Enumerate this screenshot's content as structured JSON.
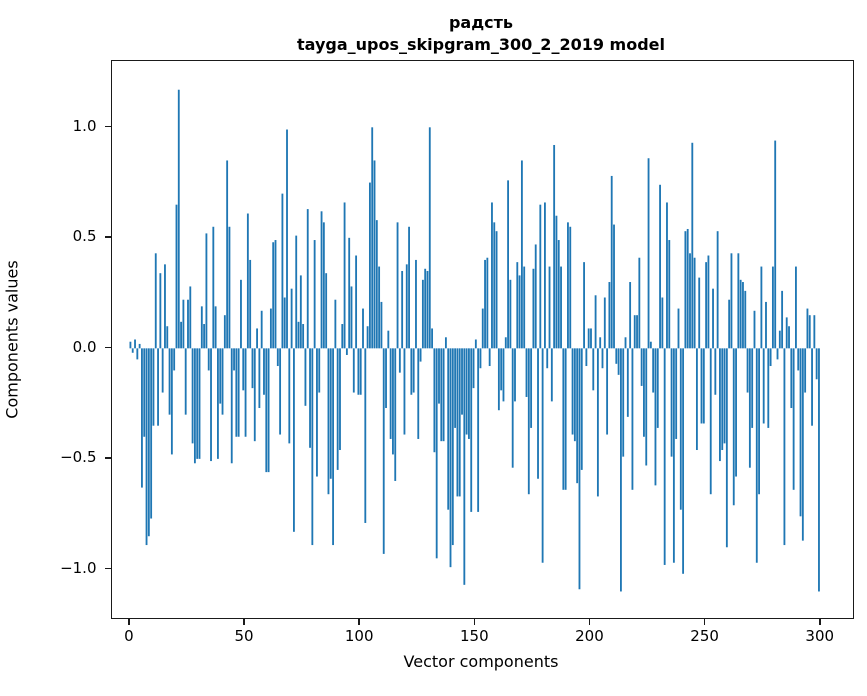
{
  "figure": {
    "background": "#ffffff",
    "title_line1": "радсть",
    "title_line2": "tayga_upos_skipgram_300_2_2019 model"
  },
  "chart_data": {
    "type": "bar",
    "title": "радсть",
    "subtitle": "tayga_upos_skipgram_300_2_2019 model",
    "xlabel": "Vector components",
    "ylabel": "Components values",
    "bar_color": "#1f77b4",
    "spine_color": "#1a1a1a",
    "grid": false,
    "legend": false,
    "xlim": [
      -8,
      314
    ],
    "ylim": [
      -1.22,
      1.3
    ],
    "x_ticks": [
      0,
      50,
      100,
      150,
      200,
      250,
      300
    ],
    "x_tick_labels": [
      "0",
      "50",
      "100",
      "150",
      "200",
      "250",
      "300"
    ],
    "y_ticks": [
      1.0,
      0.5,
      0.0,
      -0.5,
      -1.0
    ],
    "y_tick_labels": [
      "1.0",
      "0.5",
      "0.0",
      "−0.5",
      "−1.0"
    ],
    "x": "indices 0..299 (vector component number)",
    "values": [
      0.03,
      -0.02,
      0.04,
      -0.05,
      0.02,
      -0.63,
      -0.4,
      -0.89,
      -0.85,
      -0.77,
      -0.35,
      0.43,
      -0.35,
      0.34,
      -0.2,
      0.38,
      0.1,
      -0.3,
      -0.48,
      -0.1,
      0.65,
      1.17,
      0.12,
      0.22,
      -0.3,
      0.22,
      0.28,
      -0.43,
      -0.52,
      -0.5,
      -0.5,
      0.19,
      0.11,
      0.52,
      -0.1,
      -0.51,
      0.55,
      0.19,
      -0.5,
      -0.25,
      -0.3,
      0.15,
      0.85,
      0.55,
      -0.52,
      -0.1,
      -0.4,
      -0.4,
      0.31,
      -0.19,
      -0.4,
      0.61,
      0.4,
      -0.18,
      -0.42,
      0.09,
      -0.27,
      0.17,
      -0.21,
      -0.56,
      -0.56,
      0.18,
      0.48,
      0.49,
      -0.08,
      -0.39,
      0.7,
      0.23,
      0.99,
      -0.43,
      0.27,
      -0.83,
      0.51,
      0.12,
      0.33,
      0.11,
      -0.26,
      0.63,
      -0.45,
      -0.89,
      0.49,
      -0.58,
      -0.2,
      0.62,
      0.57,
      0.34,
      -0.66,
      -0.59,
      -0.89,
      0.22,
      -0.55,
      -0.46,
      0.11,
      0.66,
      -0.03,
      0.5,
      0.28,
      -0.2,
      0.42,
      -0.21,
      -0.21,
      0.18,
      -0.79,
      0.1,
      0.75,
      1.0,
      0.85,
      0.58,
      0.37,
      0.21,
      -0.93,
      -0.27,
      0.08,
      -0.41,
      -0.48,
      -0.6,
      0.57,
      -0.11,
      0.35,
      -0.39,
      0.38,
      0.55,
      -0.21,
      -0.2,
      0.4,
      -0.41,
      -0.06,
      0.31,
      0.36,
      0.35,
      1.0,
      0.09,
      -0.47,
      -0.95,
      -0.25,
      -0.42,
      -0.42,
      0.05,
      -0.73,
      -0.99,
      -0.89,
      -0.36,
      -0.67,
      -0.67,
      -0.3,
      -1.07,
      -0.39,
      -0.41,
      -0.74,
      -0.18,
      0.04,
      -0.74,
      -0.09,
      0.18,
      0.4,
      0.41,
      -0.08,
      0.66,
      0.57,
      0.53,
      -0.28,
      -0.19,
      -0.24,
      0.05,
      0.76,
      0.31,
      -0.54,
      -0.24,
      0.39,
      0.33,
      0.85,
      0.37,
      -0.22,
      -0.66,
      -0.36,
      0.36,
      0.47,
      -0.59,
      0.65,
      -0.97,
      0.66,
      -0.09,
      0.37,
      -0.24,
      0.92,
      0.6,
      0.49,
      0.37,
      -0.64,
      -0.64,
      0.57,
      0.55,
      -0.39,
      -0.42,
      -0.61,
      -1.09,
      -0.55,
      0.39,
      -0.08,
      0.09,
      0.09,
      -0.19,
      0.24,
      -0.67,
      0.05,
      -0.09,
      0.23,
      -0.39,
      0.3,
      0.78,
      0.56,
      -0.07,
      -0.12,
      -1.1,
      -0.49,
      0.05,
      -0.31,
      0.3,
      -0.64,
      0.15,
      0.15,
      0.41,
      -0.17,
      -0.4,
      -0.53,
      0.86,
      0.03,
      -0.2,
      -0.62,
      -0.36,
      0.74,
      0.23,
      -0.98,
      0.66,
      0.49,
      -0.49,
      -0.97,
      -0.41,
      0.18,
      -0.73,
      -1.02,
      0.53,
      0.54,
      0.43,
      0.93,
      0.41,
      -0.46,
      0.32,
      -0.34,
      -0.34,
      0.39,
      0.42,
      -0.66,
      0.27,
      -0.21,
      0.53,
      -0.51,
      -0.46,
      -0.43,
      -0.9,
      0.22,
      0.43,
      -0.71,
      -0.58,
      0.43,
      0.31,
      0.3,
      0.26,
      -0.2,
      -0.54,
      -0.36,
      0.17,
      -0.97,
      -0.66,
      0.37,
      -0.34,
      0.21,
      -0.36,
      -0.08,
      0.37,
      0.94,
      -0.05,
      0.08,
      0.26,
      -0.89,
      0.14,
      0.1,
      -0.27,
      -0.64,
      0.37,
      -0.1,
      -0.76,
      -0.87,
      -0.2,
      0.18,
      0.15,
      -0.35,
      0.15,
      -0.14,
      -1.1
    ]
  }
}
